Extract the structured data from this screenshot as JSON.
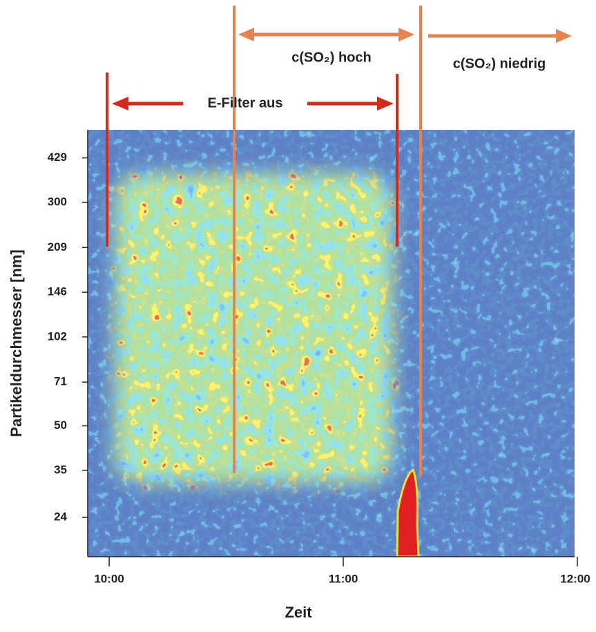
{
  "chart_data": {
    "type": "heatmap",
    "xlabel": "Zeit",
    "ylabel": "Partikeldurchmesser [nm]",
    "xlim": [
      594.5,
      719.3
    ],
    "xticks": [
      {
        "value": 600,
        "label": "10:00"
      },
      {
        "value": 660,
        "label": "11:00"
      },
      {
        "value": 720,
        "label": "12:00"
      }
    ],
    "ylim": [
      17.5,
      537
    ],
    "yticks": [
      24,
      35,
      50,
      71,
      102,
      146,
      209,
      300,
      429
    ],
    "log_y": true,
    "annotations": [
      "E-Filter aus",
      "c(SO₂) hoch",
      "c(SO₂) niedrig"
    ]
  }
}
